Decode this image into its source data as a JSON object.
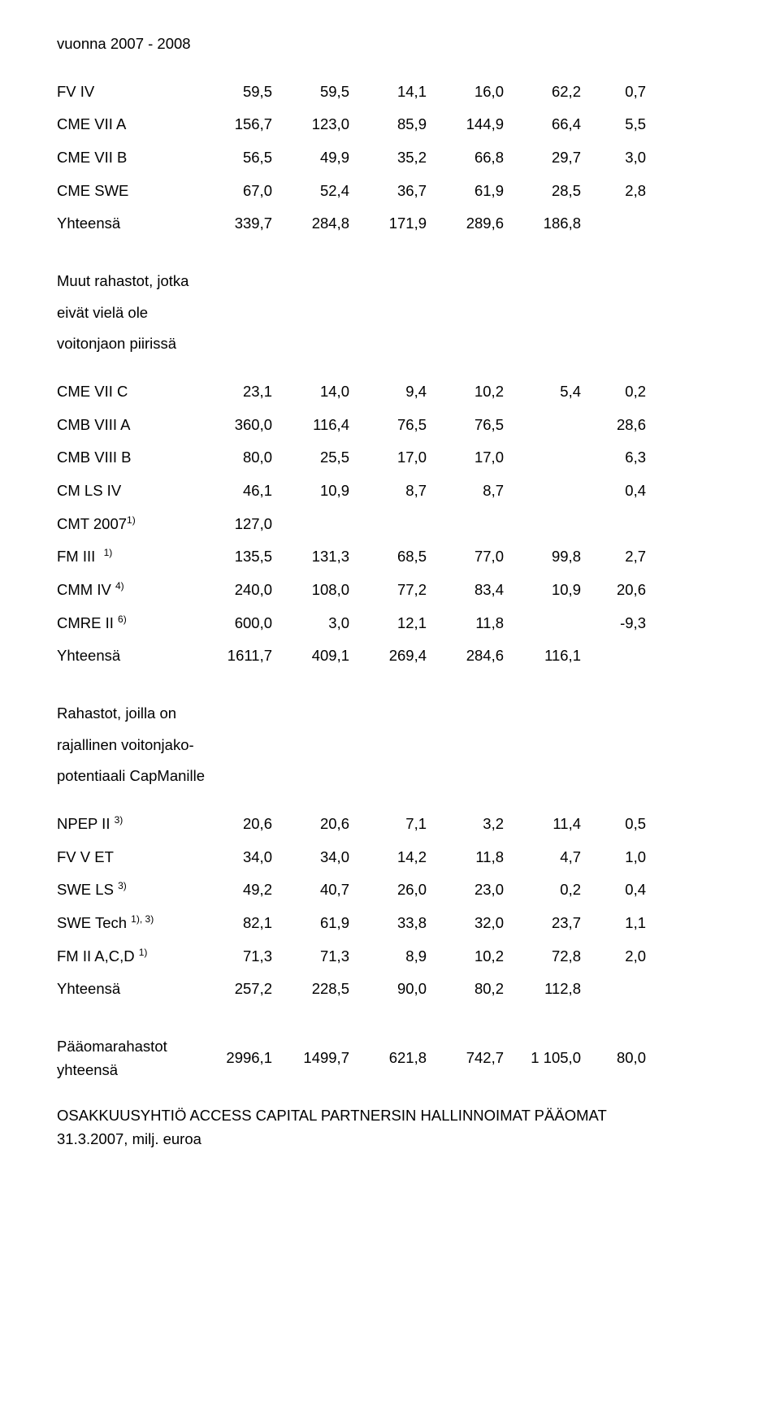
{
  "header": {
    "line1": "vuonna 2007 - 2008"
  },
  "sec1": {
    "rows": [
      {
        "label": "FV IV",
        "v": [
          "59,5",
          "59,5",
          "14,1",
          "16,0",
          "62,2",
          "0,7"
        ]
      },
      {
        "label": "CME VII A",
        "v": [
          "156,7",
          "123,0",
          "85,9",
          "144,9",
          "66,4",
          "5,5"
        ]
      },
      {
        "label": "CME VII B",
        "v": [
          "56,5",
          "49,9",
          "35,2",
          "66,8",
          "29,7",
          "3,0"
        ]
      },
      {
        "label": "CME SWE",
        "v": [
          "67,0",
          "52,4",
          "36,7",
          "61,9",
          "28,5",
          "2,8"
        ]
      },
      {
        "label": "Yhteensä",
        "v": [
          "339,7",
          "284,8",
          "171,9",
          "289,6",
          "186,8",
          ""
        ]
      }
    ]
  },
  "sec2": {
    "heading": [
      "Muut rahastot, jotka",
      "eivät vielä ole",
      "voitonjaon piirissä"
    ],
    "rows": [
      {
        "label": "CME VII C",
        "v": [
          "23,1",
          "14,0",
          "9,4",
          "10,2",
          "5,4",
          "0,2"
        ]
      },
      {
        "label": "CMB VIII A",
        "v": [
          "360,0",
          "116,4",
          "76,5",
          "76,5",
          "",
          "28,6"
        ]
      },
      {
        "label": "CMB VIII B",
        "v": [
          "80,0",
          "25,5",
          "17,0",
          "17,0",
          "",
          "6,3"
        ]
      },
      {
        "label": "CM LS IV",
        "v": [
          "46,1",
          "10,9",
          "8,7",
          "8,7",
          "",
          "0,4"
        ]
      },
      {
        "label_html": "CMT 2007<sup>1)</sup>",
        "v": [
          "127,0",
          "",
          "",
          "",
          "",
          ""
        ]
      },
      {
        "label_html": "FM III&nbsp;&nbsp;<sup>1)</sup>",
        "v": [
          "135,5",
          "131,3",
          "68,5",
          "77,0",
          "99,8",
          "2,7"
        ]
      },
      {
        "label_html": "CMM IV <sup>4)</sup>",
        "v": [
          "240,0",
          "108,0",
          "77,2",
          "83,4",
          "10,9",
          "20,6"
        ]
      },
      {
        "label_html": "CMRE II <sup>6)</sup>",
        "v": [
          "600,0",
          "3,0",
          "12,1",
          "11,8",
          "",
          "-9,3"
        ]
      },
      {
        "label": "Yhteensä",
        "v": [
          "1611,7",
          "409,1",
          "269,4",
          "284,6",
          "116,1",
          ""
        ]
      }
    ]
  },
  "sec3": {
    "heading": [
      "Rahastot, joilla on",
      "rajallinen voitonjako-",
      "potentiaali CapManille"
    ],
    "rows": [
      {
        "label_html": "NPEP II <sup>3)</sup>",
        "v": [
          "20,6",
          "20,6",
          "7,1",
          "3,2",
          "11,4",
          "0,5"
        ]
      },
      {
        "label": "FV V ET",
        "v": [
          "34,0",
          "34,0",
          "14,2",
          "11,8",
          "4,7",
          "1,0"
        ]
      },
      {
        "label_html": "SWE LS <sup>3)</sup>",
        "v": [
          "49,2",
          "40,7",
          "26,0",
          "23,0",
          "0,2",
          "0,4"
        ]
      },
      {
        "label_html": "SWE Tech <sup>1), 3)</sup>",
        "v": [
          "82,1",
          "61,9",
          "33,8",
          "32,0",
          "23,7",
          "1,1"
        ]
      },
      {
        "label_html": "FM II A,C,D <sup>1)</sup>",
        "v": [
          "71,3",
          "71,3",
          "8,9",
          "10,2",
          "72,8",
          "2,0"
        ]
      },
      {
        "label": "Yhteensä",
        "v": [
          "257,2",
          "228,5",
          "90,0",
          "80,2",
          "112,8",
          ""
        ]
      }
    ]
  },
  "totals": {
    "label1": "Pääomarahastot",
    "label2": "yhteensä",
    "v": [
      "2996,1",
      "1499,7",
      "621,8",
      "742,7",
      "1 105,0",
      "80,0"
    ]
  },
  "footer": {
    "line1": "OSAKKUUSYHTIÖ ACCESS CAPITAL PARTNERSIN HALLINNOIMAT PÄÄOMAT",
    "line2": "31.3.2007, milj. euroa"
  }
}
